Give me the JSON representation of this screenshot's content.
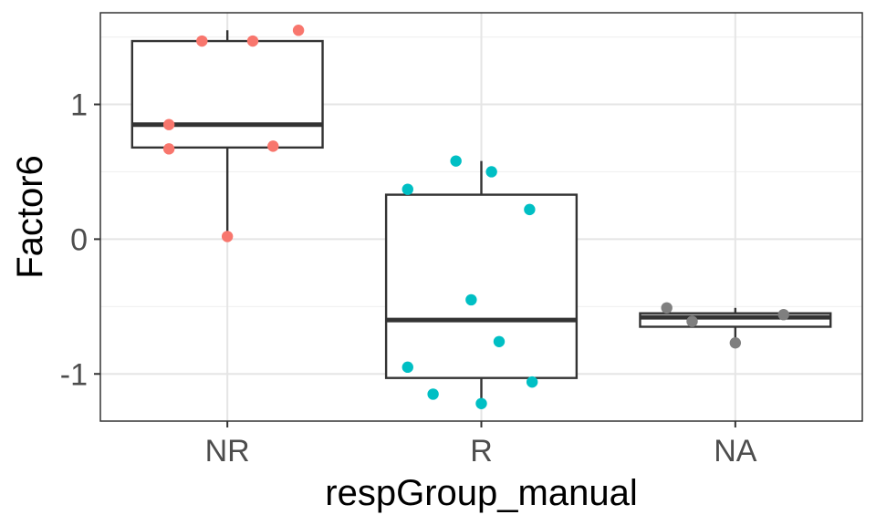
{
  "chart_data": {
    "type": "boxplot",
    "xlabel": "respGroup_manual",
    "ylabel": "Factor6",
    "ylim": [
      -1.35,
      1.68
    ],
    "y_ticks": [
      -1,
      0,
      1
    ],
    "y_tick_labels": [
      "-1",
      "0",
      "1"
    ],
    "grid": true,
    "theme": "bw",
    "categories": [
      "NR",
      "R",
      "NA"
    ],
    "groups": [
      {
        "name": "NR",
        "color": "#F8766D",
        "box": {
          "min": 0.02,
          "q1": 0.68,
          "median": 0.85,
          "q3": 1.47,
          "max": 1.55
        },
        "points": [
          {
            "x_offset": 0.0,
            "y": 0.02
          },
          {
            "x_offset": -0.23,
            "y": 0.67
          },
          {
            "x_offset": 0.18,
            "y": 0.69
          },
          {
            "x_offset": -0.23,
            "y": 0.85
          },
          {
            "x_offset": -0.1,
            "y": 1.47
          },
          {
            "x_offset": 0.1,
            "y": 1.47
          },
          {
            "x_offset": 0.28,
            "y": 1.55
          }
        ]
      },
      {
        "name": "R",
        "color": "#00BFC4",
        "box": {
          "min": -1.22,
          "q1": -1.03,
          "median": -0.6,
          "q3": 0.33,
          "max": 0.58
        },
        "points": [
          {
            "x_offset": -0.1,
            "y": 0.58
          },
          {
            "x_offset": 0.04,
            "y": 0.5
          },
          {
            "x_offset": -0.29,
            "y": 0.37
          },
          {
            "x_offset": 0.19,
            "y": 0.22
          },
          {
            "x_offset": -0.04,
            "y": -0.45
          },
          {
            "x_offset": 0.07,
            "y": -0.76
          },
          {
            "x_offset": -0.29,
            "y": -0.95
          },
          {
            "x_offset": 0.2,
            "y": -1.06
          },
          {
            "x_offset": -0.19,
            "y": -1.15
          },
          {
            "x_offset": 0.0,
            "y": -1.22
          }
        ]
      },
      {
        "name": "NA",
        "color": "#7F7F7F",
        "box": {
          "min": -0.77,
          "q1": -0.65,
          "median": -0.58,
          "q3": -0.55,
          "max": -0.51
        },
        "points": [
          {
            "x_offset": -0.27,
            "y": -0.51
          },
          {
            "x_offset": 0.19,
            "y": -0.56
          },
          {
            "x_offset": -0.17,
            "y": -0.61
          },
          {
            "x_offset": 0.0,
            "y": -0.77
          }
        ]
      }
    ]
  }
}
